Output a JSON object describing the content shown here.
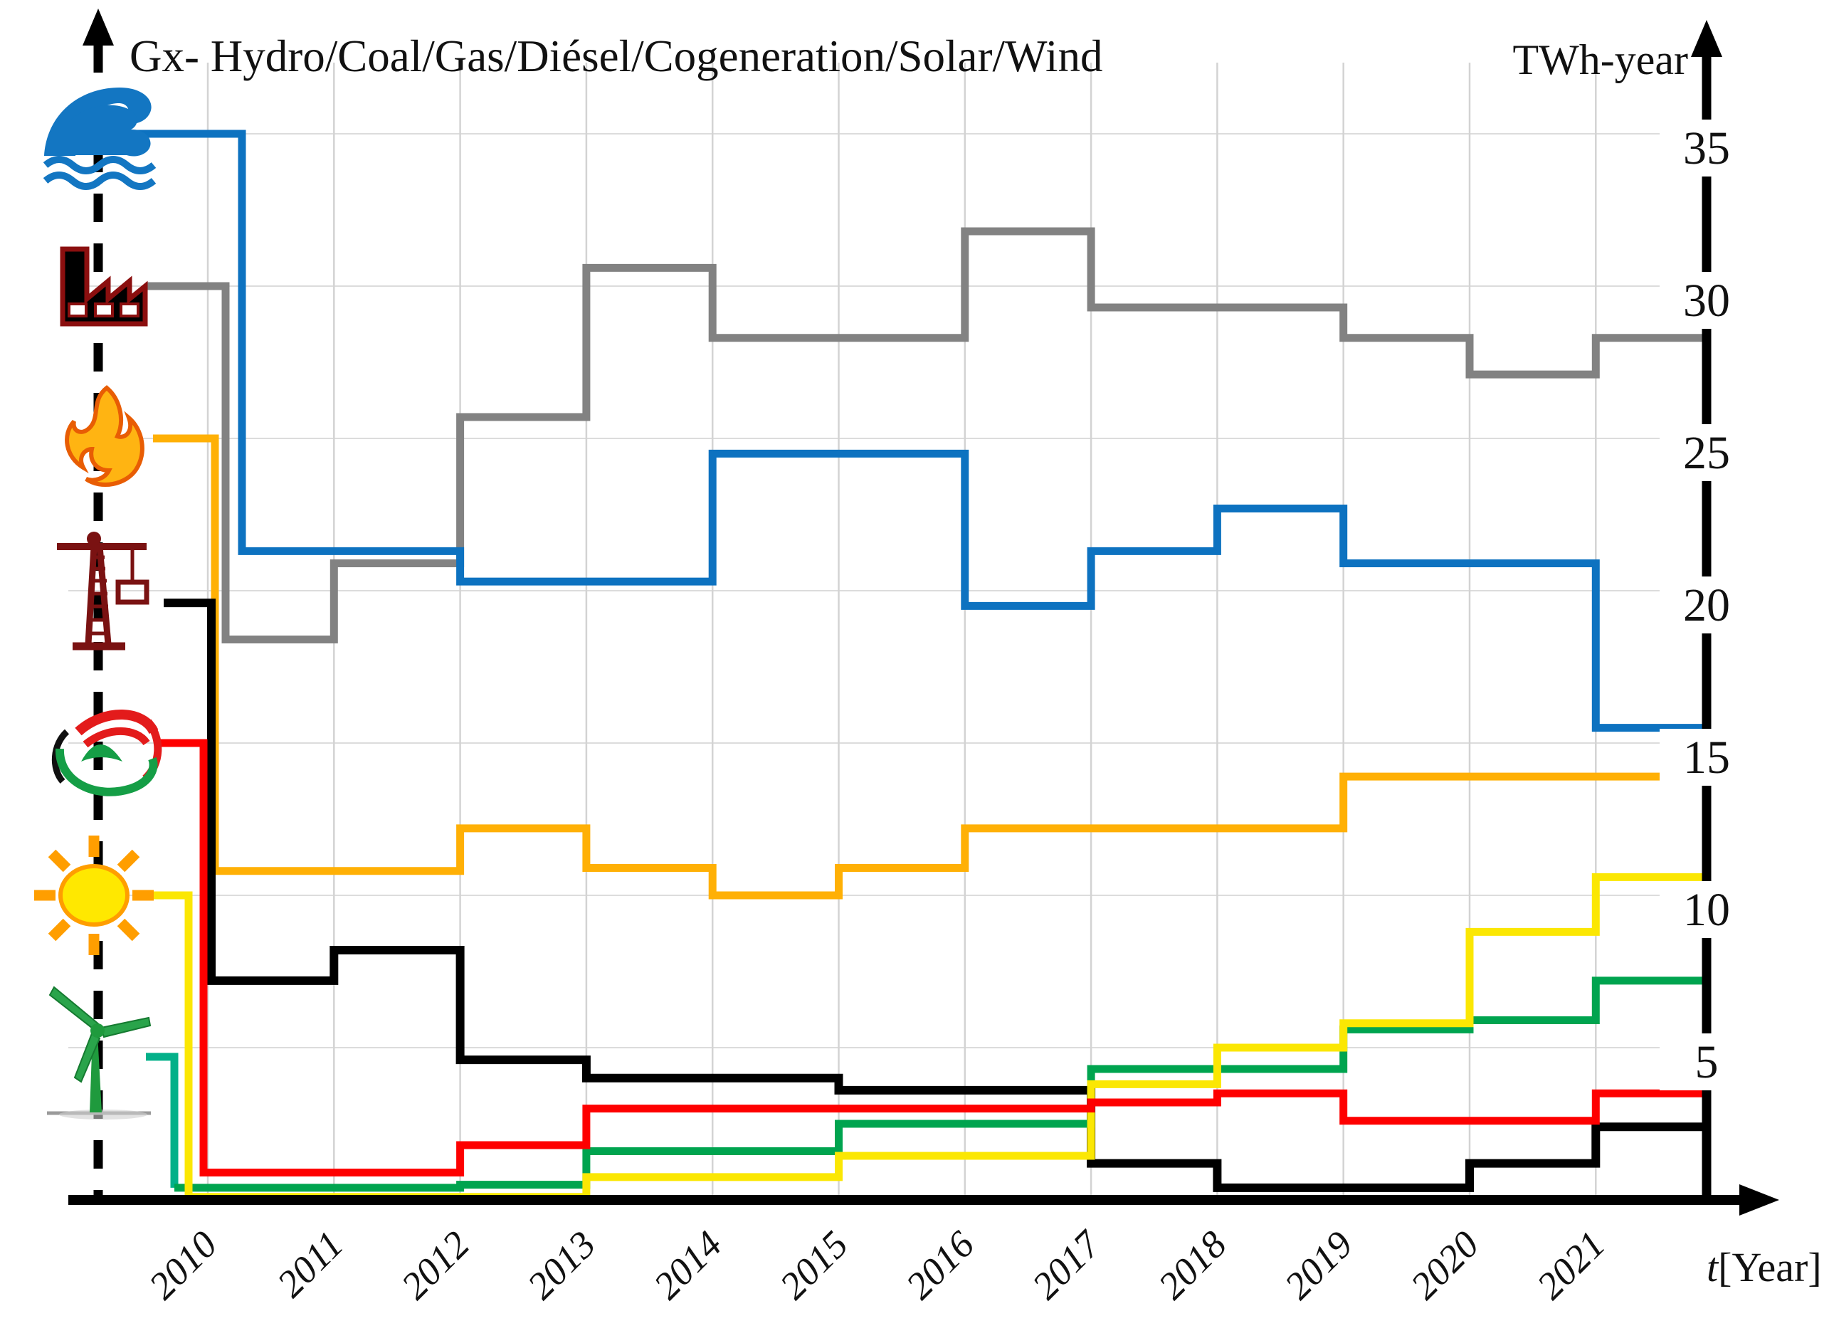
{
  "figure": {
    "title": "Gx- Hydro/Coal/Gas/Diésel/Cogeneration/Solar/Wind",
    "y_axis_label": "TWh-year",
    "x_axis_label_prefix": "t",
    "x_axis_label_suffix": "[Year]",
    "y_ticks": [
      35,
      30,
      25,
      20,
      15,
      10,
      5
    ],
    "x_ticks": [
      "2010",
      "2011",
      "2012",
      "2013",
      "2014",
      "2015",
      "2016",
      "2017",
      "2018",
      "2019",
      "2020",
      "2021"
    ]
  },
  "chart_data": {
    "type": "line",
    "line_style": "step-post",
    "title": "Gx- Hydro/Coal/Gas/Diésel/Cogeneration/Solar/Wind",
    "xlabel": "t [Year]",
    "ylabel": "TWh-year",
    "x": [
      2010,
      2011,
      2012,
      2013,
      2014,
      2015,
      2016,
      2017,
      2018,
      2019,
      2020,
      2021
    ],
    "ylim": [
      0,
      36
    ],
    "grid": true,
    "legend_position": "icons-left-axis",
    "series": [
      {
        "name": "Coal",
        "icon": "factory-icon",
        "color": "#828282",
        "lead_in_value": 30.0,
        "values": [
          18.4,
          20.9,
          25.7,
          30.6,
          28.3,
          28.3,
          31.8,
          29.3,
          29.3,
          28.3,
          27.1,
          28.3
        ]
      },
      {
        "name": "Gas",
        "icon": "flame-icon",
        "color": "#ffb005",
        "lead_in_value": 25.0,
        "values": [
          10.8,
          10.8,
          12.2,
          10.9,
          10.0,
          10.9,
          12.2,
          12.2,
          12.2,
          13.9,
          13.9,
          13.9
        ]
      },
      {
        "name": "Hydro",
        "icon": "wave-icon",
        "color": "#0d72c0",
        "lead_in_value": 35.0,
        "values": [
          21.3,
          21.3,
          20.3,
          20.3,
          24.5,
          24.5,
          19.5,
          21.3,
          22.7,
          20.9,
          20.9,
          15.5
        ]
      },
      {
        "name": "Diésel",
        "icon": "crane-icon",
        "color": "#000000",
        "lead_in_value": 19.6,
        "values": [
          7.2,
          8.2,
          4.6,
          4.0,
          4.0,
          3.6,
          3.6,
          1.2,
          0.4,
          0.4,
          1.2,
          2.4
        ]
      },
      {
        "name": "Wind",
        "icon": "wind-turbine-icon",
        "color": "#00a44f",
        "lead_in_value": 4.7,
        "values": [
          0.4,
          0.4,
          0.5,
          1.6,
          1.6,
          2.5,
          2.5,
          4.3,
          4.3,
          5.6,
          5.9,
          7.2
        ]
      },
      {
        "name": "Solar",
        "icon": "sun-icon",
        "color": "#fbe703",
        "lead_in_value": 10.0,
        "values": [
          0.1,
          0.1,
          0.1,
          0.75,
          0.75,
          1.45,
          1.45,
          3.8,
          5.0,
          5.8,
          8.8,
          10.6
        ]
      },
      {
        "name": "Cogeneration",
        "icon": "cogeneration-logo-icon",
        "color": "#fe0000",
        "lead_in_value": 15.0,
        "values": [
          0.9,
          0.9,
          1.8,
          3.0,
          3.0,
          3.0,
          3.0,
          3.2,
          3.5,
          2.6,
          2.6,
          3.5
        ]
      }
    ],
    "layout": {
      "x0": 292,
      "xstep": 177.3,
      "xend": 2392,
      "y0": 1686,
      "yscale": 42.8,
      "lead_start_x": {
        "Hydro": 190,
        "Coal": 205,
        "Gas": 215,
        "Diésel": 230,
        "Cogeneration": 225,
        "Solar": 200,
        "Wind": 205
      },
      "lead_drop_x": {
        "Hydro": 340,
        "Coal": 317,
        "Gas": 302,
        "Diésel": 297,
        "Cogeneration": 286,
        "Solar": 265,
        "Wind": 245
      },
      "lead_color": {
        "Wind": "#02b089"
      }
    }
  }
}
